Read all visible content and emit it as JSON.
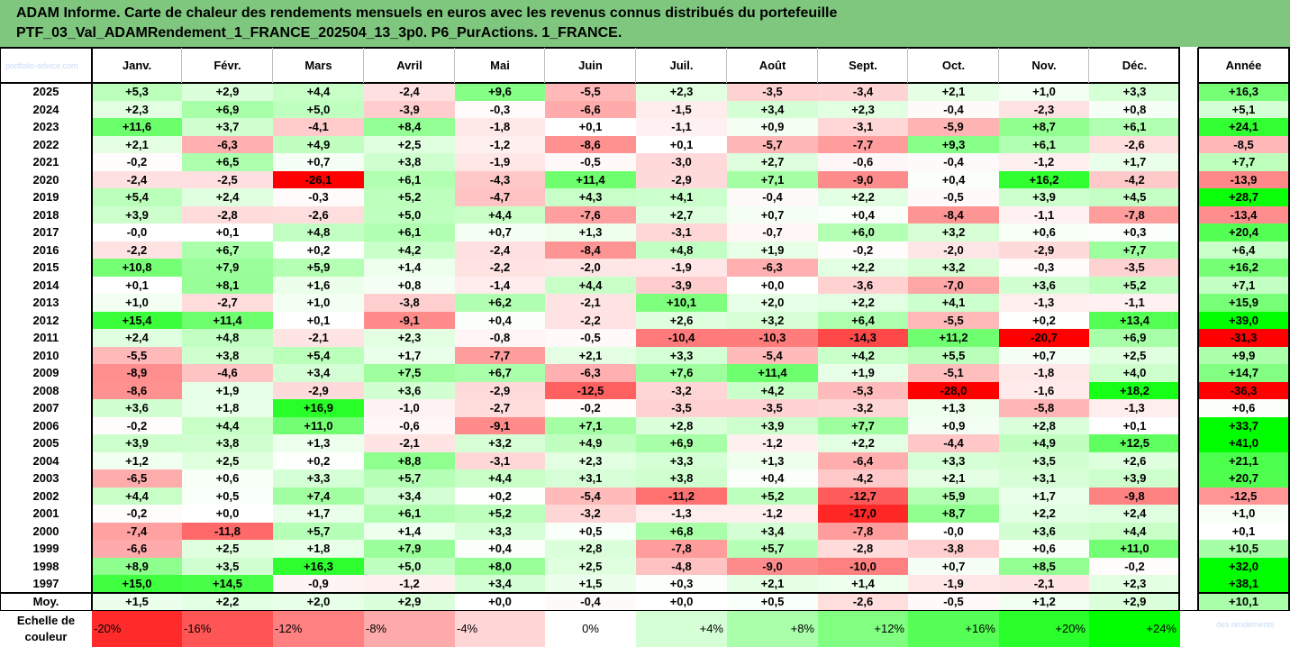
{
  "title": {
    "line1": "ADAM Informe. Carte de chaleur des rendements mensuels en euros avec les revenus connus distribués du portefeuille",
    "line2": "PTF_03_Val_ADAMRendement_1_FRANCE_202504_13_3p0. P6_PurActions. 1_FRANCE."
  },
  "watermark_left": "portfolio-advice.com",
  "watermark_right": "des rendements",
  "colors": {
    "title_bg": "#7fc77f",
    "positive_max": "#00ff00",
    "negative_max": "#ff0000",
    "neutral": "#ffffff"
  },
  "chart_data": {
    "type": "heatmap",
    "columns": [
      "Janv.",
      "Févr.",
      "Mars",
      "Avril",
      "Mai",
      "Juin",
      "Juil.",
      "Août",
      "Sept.",
      "Oct.",
      "Nov.",
      "Déc."
    ],
    "annual_label": "Année",
    "rows": [
      {
        "year": "2025",
        "values": [
          "+5,3",
          "+2,9",
          "+4,4",
          "-2,4",
          "+9,6",
          "-5,5",
          "+2,3",
          "-3,5",
          "-3,4",
          "+2,1",
          "+1,0",
          "+3,3"
        ],
        "annual": "+16,3"
      },
      {
        "year": "2024",
        "values": [
          "+2,3",
          "+6,9",
          "+5,0",
          "-3,9",
          "-0,3",
          "-6,6",
          "-1,5",
          "+3,4",
          "+2,3",
          "-0,4",
          "-2,3",
          "+0,8"
        ],
        "annual": "+5,1"
      },
      {
        "year": "2023",
        "values": [
          "+11,6",
          "+3,7",
          "-4,1",
          "+8,4",
          "-1,8",
          "+0,1",
          "-1,1",
          "+0,9",
          "-3,1",
          "-5,9",
          "+8,7",
          "+6,1"
        ],
        "annual": "+24,1"
      },
      {
        "year": "2022",
        "values": [
          "+2,1",
          "-6,3",
          "+4,9",
          "+2,5",
          "-1,2",
          "-8,6",
          "+0,1",
          "-5,7",
          "-7,7",
          "+9,3",
          "+6,1",
          "-2,6"
        ],
        "annual": "-8,5"
      },
      {
        "year": "2021",
        "values": [
          "-0,2",
          "+6,5",
          "+0,7",
          "+3,8",
          "-1,9",
          "-0,5",
          "-3,0",
          "+2,7",
          "-0,6",
          "-0,4",
          "-1,2",
          "+1,7"
        ],
        "annual": "+7,7"
      },
      {
        "year": "2020",
        "values": [
          "-2,4",
          "-2,5",
          "-26,1",
          "+6,1",
          "-4,3",
          "+11,4",
          "-2,9",
          "+7,1",
          "-9,0",
          "+0,4",
          "+16,2",
          "-4,2"
        ],
        "annual": "-13,9"
      },
      {
        "year": "2019",
        "values": [
          "+5,4",
          "+2,4",
          "-0,3",
          "+5,2",
          "-4,7",
          "+4,3",
          "+4,1",
          "-0,4",
          "+2,2",
          "-0,5",
          "+3,9",
          "+4,5"
        ],
        "annual": "+28,7"
      },
      {
        "year": "2018",
        "values": [
          "+3,9",
          "-2,8",
          "-2,6",
          "+5,0",
          "+4,4",
          "-7,6",
          "+2,7",
          "+0,7",
          "+0,4",
          "-8,4",
          "-1,1",
          "-7,8"
        ],
        "annual": "-13,4"
      },
      {
        "year": "2017",
        "values": [
          "-0,0",
          "+0,1",
          "+4,8",
          "+6,1",
          "+0,7",
          "+1,3",
          "-3,1",
          "-0,7",
          "+6,0",
          "+3,2",
          "+0,6",
          "+0,3"
        ],
        "annual": "+20,4"
      },
      {
        "year": "2016",
        "values": [
          "-2,2",
          "+6,7",
          "+0,2",
          "+4,2",
          "-2,4",
          "-8,4",
          "+4,8",
          "+1,9",
          "-0,2",
          "-2,0",
          "-2,9",
          "+7,7"
        ],
        "annual": "+6,4"
      },
      {
        "year": "2015",
        "values": [
          "+10,8",
          "+7,9",
          "+5,9",
          "+1,4",
          "-2,2",
          "-2,0",
          "-1,9",
          "-6,3",
          "+2,2",
          "+3,2",
          "-0,3",
          "-3,5"
        ],
        "annual": "+16,2"
      },
      {
        "year": "2014",
        "values": [
          "+0,1",
          "+8,1",
          "+1,6",
          "+0,8",
          "-1,4",
          "+4,4",
          "-3,9",
          "+0,0",
          "-3,6",
          "-7,0",
          "+3,6",
          "+5,2"
        ],
        "annual": "+7,1"
      },
      {
        "year": "2013",
        "values": [
          "+1,0",
          "-2,7",
          "+1,0",
          "-3,8",
          "+6,2",
          "-2,1",
          "+10,1",
          "+2,0",
          "+2,2",
          "+4,1",
          "-1,3",
          "-1,1"
        ],
        "annual": "+15,9"
      },
      {
        "year": "2012",
        "values": [
          "+15,4",
          "+11,4",
          "+0,1",
          "-9,1",
          "+0,4",
          "-2,2",
          "+2,6",
          "+3,2",
          "+6,4",
          "-5,5",
          "+0,2",
          "+13,4"
        ],
        "annual": "+39,0"
      },
      {
        "year": "2011",
        "values": [
          "+2,4",
          "+4,8",
          "-2,1",
          "+2,3",
          "-0,8",
          "-0,5",
          "-10,4",
          "-10,3",
          "-14,3",
          "+11,2",
          "-20,7",
          "+6,9"
        ],
        "annual": "-31,3"
      },
      {
        "year": "2010",
        "values": [
          "-5,5",
          "+3,8",
          "+5,4",
          "+1,7",
          "-7,7",
          "+2,1",
          "+3,3",
          "-5,4",
          "+4,2",
          "+5,5",
          "+0,7",
          "+2,5"
        ],
        "annual": "+9,9"
      },
      {
        "year": "2009",
        "values": [
          "-8,9",
          "-4,6",
          "+3,4",
          "+7,5",
          "+6,7",
          "-6,3",
          "+7,6",
          "+11,4",
          "+1,9",
          "-5,1",
          "-1,8",
          "+4,0"
        ],
        "annual": "+14,7"
      },
      {
        "year": "2008",
        "values": [
          "-8,6",
          "+1,9",
          "-2,9",
          "+3,6",
          "-2,9",
          "-12,5",
          "-3,2",
          "+4,2",
          "-5,3",
          "-28,0",
          "-1,6",
          "+18,2"
        ],
        "annual": "-36,3"
      },
      {
        "year": "2007",
        "values": [
          "+3,6",
          "+1,8",
          "+16,9",
          "-1,0",
          "-2,7",
          "-0,2",
          "-3,5",
          "-3,5",
          "-3,2",
          "+1,3",
          "-5,8",
          "-1,3"
        ],
        "annual": "+0,6"
      },
      {
        "year": "2006",
        "values": [
          "-0,2",
          "+4,4",
          "+11,0",
          "-0,6",
          "-9,1",
          "+7,1",
          "+2,8",
          "+3,9",
          "+7,7",
          "+0,9",
          "+2,8",
          "+0,1"
        ],
        "annual": "+33,7"
      },
      {
        "year": "2005",
        "values": [
          "+3,9",
          "+3,8",
          "+1,3",
          "-2,1",
          "+3,2",
          "+4,9",
          "+6,9",
          "-1,2",
          "+2,2",
          "-4,4",
          "+4,9",
          "+12,5"
        ],
        "annual": "+41,0"
      },
      {
        "year": "2004",
        "values": [
          "+1,2",
          "+2,5",
          "+0,2",
          "+8,8",
          "-3,1",
          "+2,3",
          "+3,3",
          "+1,3",
          "-6,4",
          "+3,3",
          "+3,5",
          "+2,6"
        ],
        "annual": "+21,1"
      },
      {
        "year": "2003",
        "values": [
          "-6,5",
          "+0,6",
          "+3,3",
          "+5,7",
          "+4,4",
          "+3,1",
          "+3,8",
          "+0,4",
          "-4,2",
          "+2,1",
          "+3,1",
          "+3,9"
        ],
        "annual": "+20,7"
      },
      {
        "year": "2002",
        "values": [
          "+4,4",
          "+0,5",
          "+7,4",
          "+3,4",
          "+0,2",
          "-5,4",
          "-11,2",
          "+5,2",
          "-12,7",
          "+5,9",
          "+1,7",
          "-9,8"
        ],
        "annual": "-12,5"
      },
      {
        "year": "2001",
        "values": [
          "-0,2",
          "+0,0",
          "+1,7",
          "+6,1",
          "+5,2",
          "-3,2",
          "-1,3",
          "-1,2",
          "-17,0",
          "+8,7",
          "+2,2",
          "+2,4"
        ],
        "annual": "+1,0"
      },
      {
        "year": "2000",
        "values": [
          "-7,4",
          "-11,8",
          "+5,7",
          "+1,4",
          "+3,3",
          "+0,5",
          "+6,8",
          "+3,4",
          "-7,8",
          "-0,0",
          "+3,6",
          "+4,4"
        ],
        "annual": "+0,1"
      },
      {
        "year": "1999",
        "values": [
          "-6,6",
          "+2,5",
          "+1,8",
          "+7,9",
          "+0,4",
          "+2,8",
          "-7,8",
          "+5,7",
          "-2,8",
          "-3,8",
          "+0,6",
          "+11,0"
        ],
        "annual": "+10,5"
      },
      {
        "year": "1998",
        "values": [
          "+8,9",
          "+3,5",
          "+16,3",
          "+5,0",
          "+8,0",
          "+2,5",
          "-4,8",
          "-9,0",
          "-10,0",
          "+0,7",
          "+8,5",
          "-0,2"
        ],
        "annual": "+32,0"
      },
      {
        "year": "1997",
        "values": [
          "+15,0",
          "+14,5",
          "-0,9",
          "-1,2",
          "+3,4",
          "+1,5",
          "+0,3",
          "+2,1",
          "+1,4",
          "-1,9",
          "-2,1",
          "+2,3"
        ],
        "annual": "+38,1"
      }
    ],
    "average": {
      "label": "Moy.",
      "values": [
        "+1,5",
        "+2,2",
        "+2,0",
        "+2,9",
        "+0,0",
        "-0,4",
        "+0,0",
        "+0,5",
        "-2,6",
        "-0,5",
        "+1,2",
        "+2,9"
      ],
      "annual": "+10,1"
    },
    "scale": {
      "label_line1": "Echelle de",
      "label_line2": "couleur",
      "stops": [
        {
          "label": "-20%",
          "value": -20
        },
        {
          "label": "-16%",
          "value": -16
        },
        {
          "label": "-12%",
          "value": -12
        },
        {
          "label": "-8%",
          "value": -8
        },
        {
          "label": "-4%",
          "value": -4
        },
        {
          "label": "0%",
          "value": 0
        },
        {
          "label": "+4%",
          "value": 4
        },
        {
          "label": "+8%",
          "value": 8
        },
        {
          "label": "+12%",
          "value": 12
        },
        {
          "label": "+16%",
          "value": 16
        },
        {
          "label": "+20%",
          "value": 20
        },
        {
          "label": "+24%",
          "value": 24
        }
      ]
    }
  }
}
